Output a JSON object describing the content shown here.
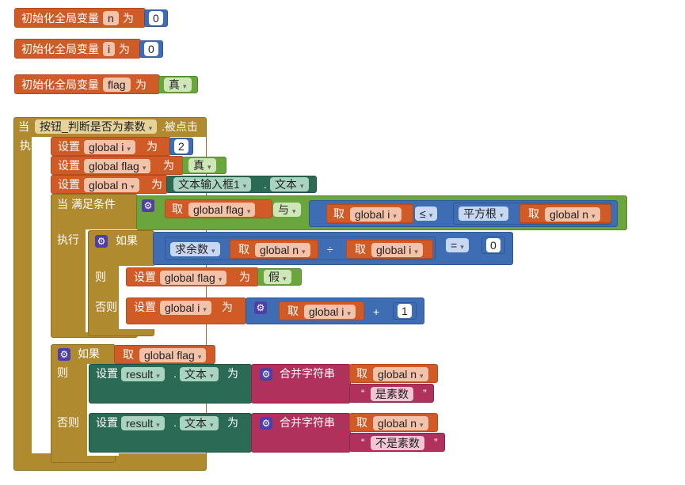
{
  "globals": [
    {
      "label": "初始化全局变量",
      "name": "n",
      "word": "为",
      "value": "0"
    },
    {
      "label": "初始化全局变量",
      "name": "i",
      "word": "为",
      "value": "0"
    },
    {
      "label": "初始化全局变量",
      "name": "flag",
      "word": "为",
      "value": "真"
    }
  ],
  "event": {
    "when": "当",
    "component": "按钮_判断是否为素数",
    "event": ".被点击",
    "do": "执行"
  },
  "set1": {
    "set": "设置",
    "var": "global i",
    "to": "为",
    "value": "2"
  },
  "set2": {
    "set": "设置",
    "var": "global flag",
    "to": "为",
    "value": "真"
  },
  "set3": {
    "set": "设置",
    "var": "global n",
    "to": "为",
    "component": "文本输入框1",
    "dot": ".",
    "prop": "文本"
  },
  "while": {
    "label": "当 满足条件",
    "do": "执行",
    "get1": "取",
    "var1": "global flag",
    "and": "与",
    "get2": "取",
    "var2": "global i",
    "le": "≤",
    "sqrt": "平方根",
    "get3": "取",
    "var3": "global n"
  },
  "if1": {
    "label": "如果",
    "mod": "求余数",
    "get1": "取",
    "var1": "global n",
    "div": "÷",
    "get2": "取",
    "var2": "global i",
    "eq": "=",
    "zero": "0",
    "then": "则",
    "else": "否则",
    "then_set": "设置",
    "then_var": "global flag",
    "then_to": "为",
    "then_val": "假",
    "else_set": "设置",
    "else_var": "global i",
    "else_to": "为",
    "else_get": "取",
    "else_gvar": "global i",
    "plus": "+",
    "one": "1"
  },
  "if2": {
    "label": "如果",
    "get": "取",
    "var": "global flag",
    "then": "则",
    "else": "否则",
    "then_set": "设置",
    "then_comp": "result",
    "then_dot": ".",
    "then_prop": "文本",
    "then_to": "为",
    "then_join": "合并字符串",
    "then_get": "取",
    "then_gvar": "global n",
    "then_str": "是素数",
    "else_set": "设置",
    "else_comp": "result",
    "else_dot": ".",
    "else_prop": "文本",
    "else_to": "为",
    "else_join": "合并字符串",
    "else_get": "取",
    "else_gvar": "global n",
    "else_str": "不是素数"
  },
  "quote_open": "“",
  "quote_close": "”",
  "colors": {
    "variable": "#d05b26",
    "control": "#b08a2e",
    "logic": "#6aa53e",
    "math": "#3f6db4",
    "component": "#2b6a55",
    "text": "#b0325c"
  }
}
